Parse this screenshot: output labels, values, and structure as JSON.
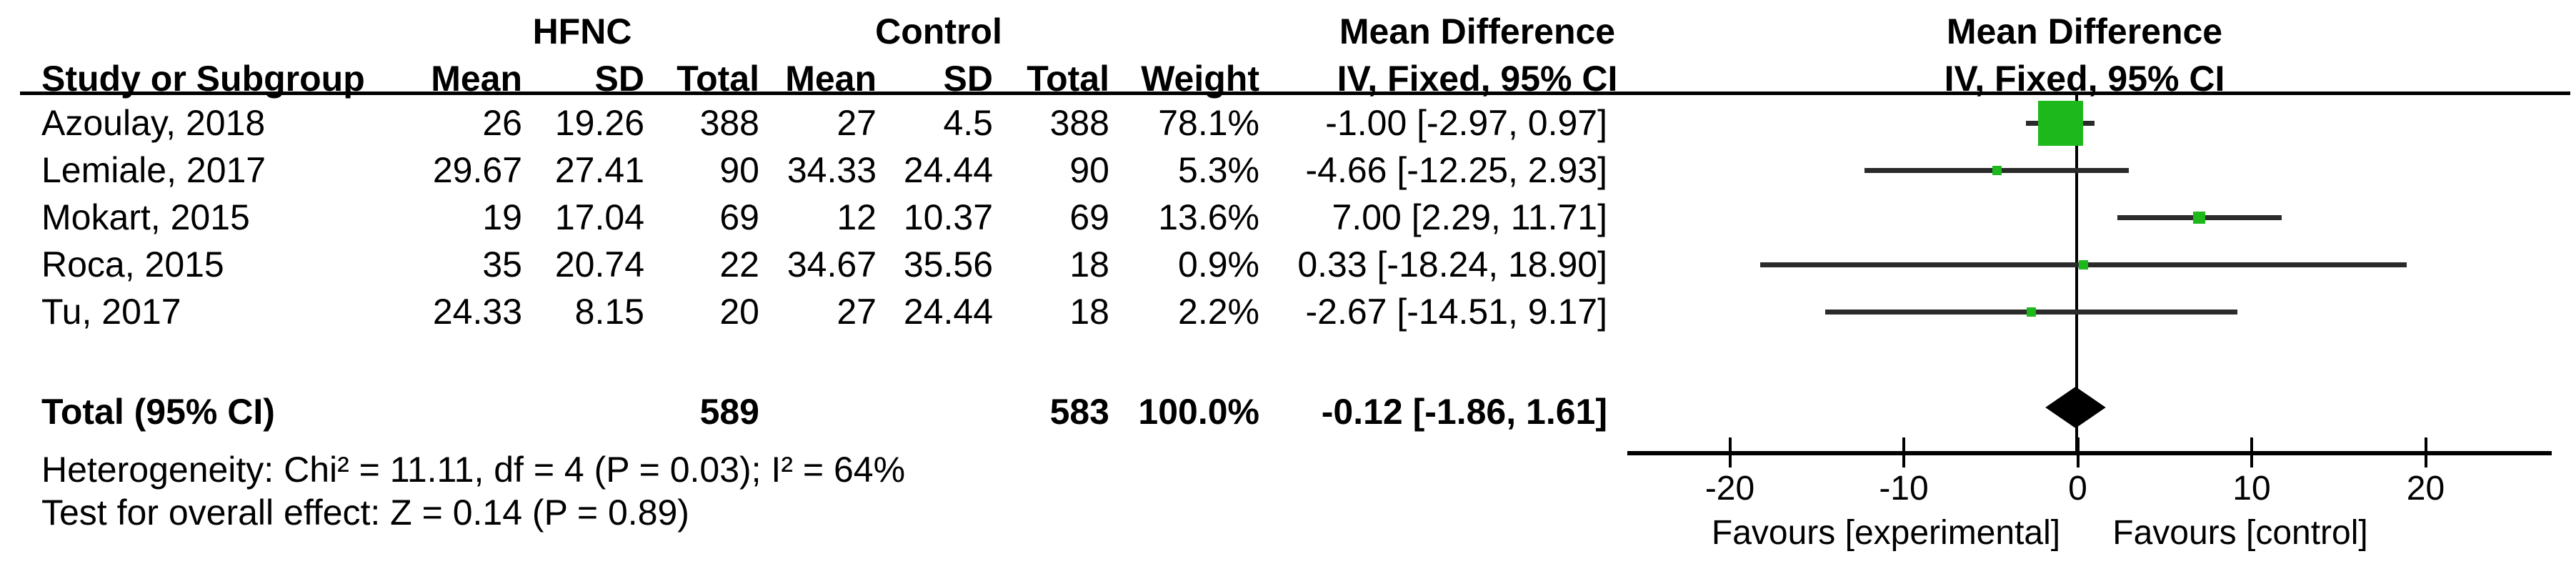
{
  "header": {
    "group_hfnc": "HFNC",
    "group_control": "Control",
    "md_left": "Mean Difference",
    "md_right": "Mean Difference",
    "col_study": "Study or Subgroup",
    "col_mean1": "Mean",
    "col_sd1": "SD",
    "col_total1": "Total",
    "col_mean2": "Mean",
    "col_sd2": "SD",
    "col_total2": "Total",
    "col_weight": "Weight",
    "col_ci_left": "IV, Fixed, 95% CI",
    "col_ci_right": "IV, Fixed, 95% CI"
  },
  "studies": [
    {
      "name": "Azoulay, 2018",
      "mean1": "26",
      "sd1": "19.26",
      "total1": "388",
      "mean2": "27",
      "sd2": "4.5",
      "total2": "388",
      "weight": "78.1%",
      "weight_value": 78.1,
      "ci_text": "-1.00 [-2.97, 0.97]",
      "md": -1.0,
      "ci_low": -2.97,
      "ci_high": 0.97
    },
    {
      "name": "Lemiale, 2017",
      "mean1": "29.67",
      "sd1": "27.41",
      "total1": "90",
      "mean2": "34.33",
      "sd2": "24.44",
      "total2": "90",
      "weight": "5.3%",
      "weight_value": 5.3,
      "ci_text": "-4.66 [-12.25, 2.93]",
      "md": -4.66,
      "ci_low": -12.25,
      "ci_high": 2.93
    },
    {
      "name": "Mokart, 2015",
      "mean1": "19",
      "sd1": "17.04",
      "total1": "69",
      "mean2": "12",
      "sd2": "10.37",
      "total2": "69",
      "weight": "13.6%",
      "weight_value": 13.6,
      "ci_text": "7.00 [2.29, 11.71]",
      "md": 7.0,
      "ci_low": 2.29,
      "ci_high": 11.71
    },
    {
      "name": "Roca, 2015",
      "mean1": "35",
      "sd1": "20.74",
      "total1": "22",
      "mean2": "34.67",
      "sd2": "35.56",
      "total2": "18",
      "weight": "0.9%",
      "weight_value": 0.9,
      "ci_text": "0.33 [-18.24, 18.90]",
      "md": 0.33,
      "ci_low": -18.24,
      "ci_high": 18.9
    },
    {
      "name": "Tu, 2017",
      "mean1": "24.33",
      "sd1": "8.15",
      "total1": "20",
      "mean2": "27",
      "sd2": "24.44",
      "total2": "18",
      "weight": "2.2%",
      "weight_value": 2.2,
      "ci_text": "-2.67 [-14.51, 9.17]",
      "md": -2.67,
      "ci_low": -14.51,
      "ci_high": 9.17
    }
  ],
  "totals": {
    "label": "Total (95% CI)",
    "total1": "589",
    "total2": "583",
    "weight": "100.0%",
    "ci_text": "-0.12 [-1.86, 1.61]",
    "md": -0.12,
    "ci_low": -1.86,
    "ci_high": 1.61
  },
  "footnotes": {
    "heterogeneity": "Heterogeneity: Chi² = 11.11, df = 4 (P = 0.03); I² = 64%",
    "overall_effect": "Test for overall effect: Z = 0.14 (P = 0.89)"
  },
  "axis": {
    "ticks": [
      -20,
      -10,
      0,
      10,
      20
    ],
    "favours_left": "Favours [experimental]",
    "favours_right": "Favours [control]"
  },
  "colors": {
    "square_green": "#1CB81C",
    "diamond_black": "#000000",
    "line_dark": "#2b2b2b"
  },
  "chart_data": {
    "type": "scatter",
    "subtype": "forest-plot-meta-analysis",
    "title": "Mean Difference, IV, Fixed, 95% CI (HFNC vs Control)",
    "categories": [
      "Azoulay, 2018",
      "Lemiale, 2017",
      "Mokart, 2015",
      "Roca, 2015",
      "Tu, 2017"
    ],
    "series": [
      {
        "name": "Mean Difference",
        "values": [
          -1.0,
          -4.66,
          7.0,
          0.33,
          -2.67
        ]
      },
      {
        "name": "CI lower 95%",
        "values": [
          -2.97,
          -12.25,
          2.29,
          -18.24,
          -14.51
        ]
      },
      {
        "name": "CI upper 95%",
        "values": [
          0.97,
          2.93,
          11.71,
          18.9,
          9.17
        ]
      },
      {
        "name": "Weight %",
        "values": [
          78.1,
          5.3,
          13.6,
          0.9,
          2.2
        ]
      },
      {
        "name": "HFNC mean",
        "values": [
          26,
          29.67,
          19,
          35,
          24.33
        ]
      },
      {
        "name": "HFNC SD",
        "values": [
          19.26,
          27.41,
          17.04,
          20.74,
          8.15
        ]
      },
      {
        "name": "HFNC total",
        "values": [
          388,
          90,
          69,
          22,
          20
        ]
      },
      {
        "name": "Control mean",
        "values": [
          27,
          34.33,
          12,
          34.67,
          27
        ]
      },
      {
        "name": "Control SD",
        "values": [
          4.5,
          24.44,
          10.37,
          35.56,
          24.44
        ]
      },
      {
        "name": "Control total",
        "values": [
          388,
          90,
          69,
          18,
          18
        ]
      }
    ],
    "overall": {
      "label": "Total (95% CI)",
      "md": -0.12,
      "ci_low": -1.86,
      "ci_high": 1.61,
      "weight": 100.0,
      "hfnc_total": 589,
      "control_total": 583
    },
    "xlabel": "Mean Difference",
    "xlim": [
      -26,
      27
    ],
    "x_ticks": [
      -20,
      -10,
      0,
      10,
      20
    ],
    "x_direction_labels": [
      "Favours [experimental]",
      "Favours [control]"
    ],
    "heterogeneity": "Chi² = 11.11, df = 4 (P = 0.03); I² = 64%",
    "overall_effect_test": "Z = 0.14 (P = 0.89)",
    "legend": "none",
    "grid": false
  }
}
